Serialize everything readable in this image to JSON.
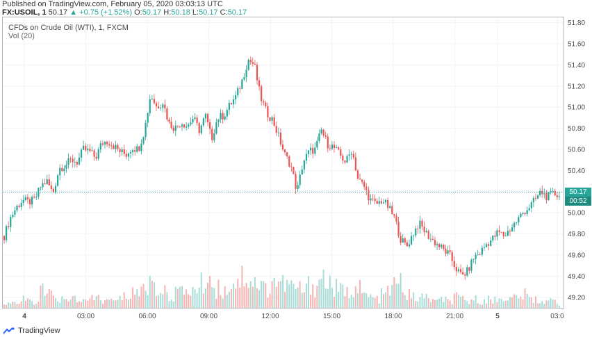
{
  "header": {
    "published": "Published on TradingView.com, February 05, 2020 03:03:13 UTC",
    "symbol": "FX:USOIL, 1",
    "last": "50.17",
    "change": "▲ +0.75 (+1.52%)",
    "o_label": "O:",
    "o_value": "50.17",
    "h_label": "H:",
    "h_value": "50.18",
    "l_label": "L:",
    "l_value": "50.17",
    "c_label": "C:",
    "c_value": "50.17"
  },
  "legend": {
    "title": "CFDs on Crude Oil (WTI), 1, FXCM",
    "volume": "Vol (20)"
  },
  "price_tags": {
    "last_price": "50.17",
    "countdown": "00:52"
  },
  "footer": {
    "brand": "TradingView"
  },
  "colors": {
    "up": "#26a69a",
    "down": "#ef5350",
    "grid": "#f0f3fa",
    "axis_text": "#4a4a4a"
  },
  "chart_data": {
    "type": "candlestick",
    "title": "CFDs on Crude Oil (WTI), 1, FXCM",
    "ylim": [
      49.1,
      51.85
    ],
    "y_ticks": [
      "51.80",
      "51.60",
      "51.40",
      "51.20",
      "51.00",
      "50.80",
      "50.60",
      "50.40",
      "50.20",
      "50.00",
      "49.80",
      "49.60",
      "49.40",
      "49.20"
    ],
    "x_ticks": [
      "4",
      "03:00",
      "06:00",
      "09:00",
      "12:00",
      "15:00",
      "18:00",
      "21:00",
      "5",
      "03:0"
    ],
    "close_path": [
      [
        0,
        49.78
      ],
      [
        1,
        49.95
      ],
      [
        2,
        50.05
      ],
      [
        3,
        50.12
      ],
      [
        4,
        50.1
      ],
      [
        5,
        50.12
      ],
      [
        6,
        50.25
      ],
      [
        7,
        50.3
      ],
      [
        8,
        50.18
      ],
      [
        9,
        50.42
      ],
      [
        10,
        50.45
      ],
      [
        11,
        50.5
      ],
      [
        12,
        50.48
      ],
      [
        13,
        50.6
      ],
      [
        14,
        50.58
      ],
      [
        15,
        50.52
      ],
      [
        16,
        50.66
      ],
      [
        17,
        50.68
      ],
      [
        18,
        50.63
      ],
      [
        19,
        50.58
      ],
      [
        20,
        50.55
      ],
      [
        21,
        50.62
      ],
      [
        22,
        50.6
      ],
      [
        23,
        50.78
      ],
      [
        24,
        51.12
      ],
      [
        25,
        51.0
      ],
      [
        26,
        51.05
      ],
      [
        27,
        50.85
      ],
      [
        28,
        50.8
      ],
      [
        29,
        50.86
      ],
      [
        30,
        50.82
      ],
      [
        31,
        50.9
      ],
      [
        32,
        50.78
      ],
      [
        33,
        50.92
      ],
      [
        34,
        50.7
      ],
      [
        35,
        50.9
      ],
      [
        36,
        50.92
      ],
      [
        37,
        51.02
      ],
      [
        38,
        51.1
      ],
      [
        39,
        51.25
      ],
      [
        40,
        51.45
      ],
      [
        41,
        51.4
      ],
      [
        42,
        51.1
      ],
      [
        43,
        50.95
      ],
      [
        44,
        50.88
      ],
      [
        45,
        50.72
      ],
      [
        46,
        50.55
      ],
      [
        47,
        50.45
      ],
      [
        48,
        50.2
      ],
      [
        49,
        50.48
      ],
      [
        50,
        50.58
      ],
      [
        51,
        50.6
      ],
      [
        52,
        50.78
      ],
      [
        53,
        50.65
      ],
      [
        54,
        50.62
      ],
      [
        55,
        50.55
      ],
      [
        56,
        50.48
      ],
      [
        57,
        50.6
      ],
      [
        58,
        50.32
      ],
      [
        59,
        50.25
      ],
      [
        60,
        50.12
      ],
      [
        61,
        50.08
      ],
      [
        62,
        50.12
      ],
      [
        63,
        50.05
      ],
      [
        64,
        49.95
      ],
      [
        65,
        49.75
      ],
      [
        66,
        49.68
      ],
      [
        67,
        49.8
      ],
      [
        68,
        49.9
      ],
      [
        69,
        49.82
      ],
      [
        70,
        49.75
      ],
      [
        71,
        49.7
      ],
      [
        72,
        49.65
      ],
      [
        73,
        49.6
      ],
      [
        74,
        49.48
      ],
      [
        75,
        49.4
      ],
      [
        76,
        49.45
      ],
      [
        77,
        49.58
      ],
      [
        78,
        49.62
      ],
      [
        79,
        49.7
      ],
      [
        80,
        49.75
      ],
      [
        81,
        49.82
      ],
      [
        82,
        49.78
      ],
      [
        83,
        49.85
      ],
      [
        84,
        49.92
      ],
      [
        85,
        50.0
      ],
      [
        86,
        50.05
      ],
      [
        87,
        50.12
      ],
      [
        88,
        50.2
      ],
      [
        89,
        50.15
      ],
      [
        90,
        50.18
      ],
      [
        91,
        50.17
      ]
    ],
    "volume_levels": [
      2,
      3,
      2,
      4,
      3,
      2,
      8,
      6,
      5,
      4,
      3,
      5,
      4,
      3,
      4,
      5,
      3,
      4,
      3,
      5,
      6,
      8,
      7,
      10,
      12,
      9,
      7,
      6,
      8,
      7,
      9,
      8,
      11,
      14,
      10,
      9,
      8,
      12,
      13,
      15,
      14,
      12,
      10,
      9,
      13,
      12,
      11,
      10,
      9,
      8,
      11,
      10,
      14,
      12,
      9,
      8,
      7,
      10,
      9,
      6,
      5,
      4,
      6,
      8,
      10,
      12,
      6,
      5,
      4,
      5,
      4,
      3,
      4,
      3,
      5,
      4,
      3,
      4,
      3,
      4,
      3,
      4,
      5,
      4,
      5,
      6,
      5,
      4,
      3,
      4,
      3,
      2
    ]
  }
}
